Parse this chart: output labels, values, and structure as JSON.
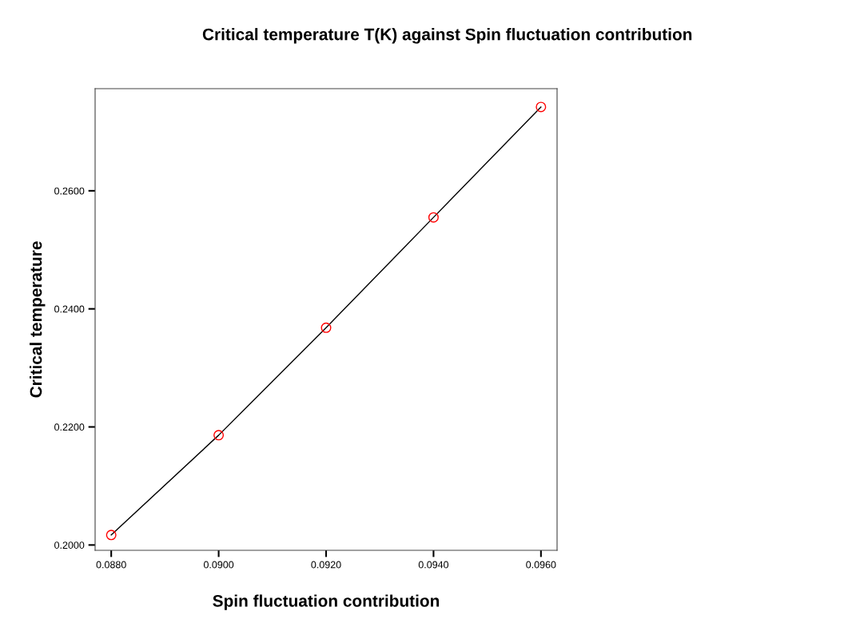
{
  "chart_data": {
    "type": "line",
    "title": "Critical temperature T(K) against Spin fluctuation contribution",
    "xlabel": "Spin fluctuation contribution",
    "ylabel": "Critical temperature",
    "x": [
      0.088,
      0.09,
      0.092,
      0.094,
      0.096
    ],
    "series": [
      {
        "color": "#000000",
        "values": [
          0.2017,
          0.2186,
          0.2368,
          0.2555,
          0.2742
        ],
        "marker": "none"
      },
      {
        "type": "scatter",
        "color": "#ff0000",
        "values": [
          0.2017,
          0.2186,
          0.2368,
          0.2555,
          0.2742
        ],
        "marker": "circle"
      }
    ],
    "xlim": [
      0.0877,
      0.0963
    ],
    "ylim": [
      0.1991,
      0.2773
    ],
    "xticks": [
      {
        "value": 0.088,
        "label": "0.0880"
      },
      {
        "value": 0.09,
        "label": "0.0900"
      },
      {
        "value": 0.092,
        "label": "0.0920"
      },
      {
        "value": 0.094,
        "label": "0.0940"
      },
      {
        "value": 0.096,
        "label": "0.0960"
      }
    ],
    "yticks": [
      {
        "value": 0.2,
        "label": "0.2000"
      },
      {
        "value": 0.22,
        "label": "0.2200"
      },
      {
        "value": 0.24,
        "label": "0.2400"
      },
      {
        "value": 0.26,
        "label": "0.2600"
      }
    ],
    "grid": false,
    "legend": false
  }
}
